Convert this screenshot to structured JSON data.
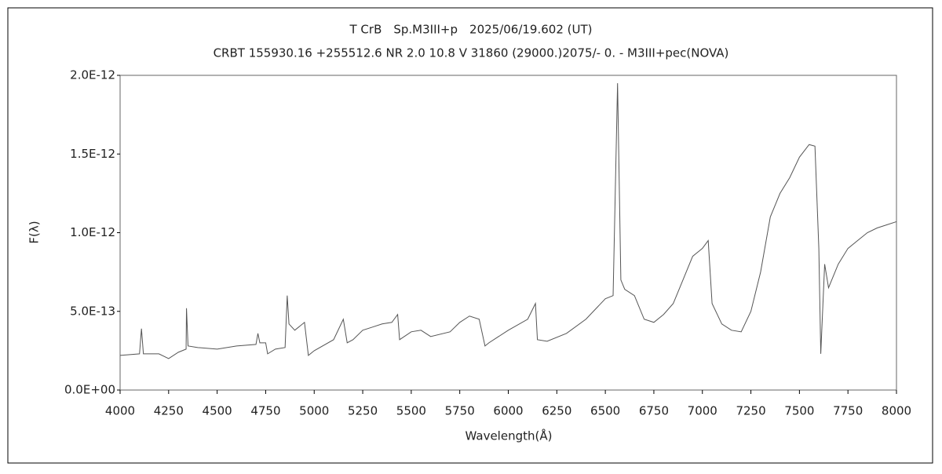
{
  "chart_data": {
    "type": "line",
    "title": "T CrB　Sp.M3III+p　2025/06/19.602 (UT)",
    "subtitle": "CRBT 155930.16 +255512.6 NR 2.0 10.8 V 31860 (29000.)2075/-  0. - M3III+pec(NOVA)",
    "xlabel": "Wavelength(Å)",
    "ylabel": "F(λ)",
    "color": "#555555",
    "x": [
      4000,
      4100,
      4110,
      4120,
      4200,
      4250,
      4300,
      4340,
      4342,
      4350,
      4400,
      4500,
      4600,
      4700,
      4710,
      4720,
      4750,
      4760,
      4800,
      4850,
      4861,
      4870,
      4900,
      4950,
      4970,
      5000,
      5100,
      5150,
      5170,
      5200,
      5250,
      5300,
      5350,
      5400,
      5430,
      5440,
      5500,
      5550,
      5600,
      5700,
      5750,
      5800,
      5850,
      5880,
      5900,
      6000,
      6100,
      6140,
      6150,
      6200,
      6300,
      6400,
      6500,
      6540,
      6563,
      6580,
      6600,
      6650,
      6700,
      6750,
      6800,
      6850,
      6900,
      6950,
      7000,
      7030,
      7050,
      7100,
      7150,
      7200,
      7250,
      7300,
      7350,
      7400,
      7450,
      7500,
      7550,
      7580,
      7600,
      7610,
      7630,
      7650,
      7700,
      7750,
      7800,
      7850,
      7900,
      7950,
      8000
    ],
    "values": [
      2.2e-13,
      2.3e-13,
      3.9e-13,
      2.3e-13,
      2.3e-13,
      2e-13,
      2.4e-13,
      2.6e-13,
      5.2e-13,
      2.8e-13,
      2.7e-13,
      2.6e-13,
      2.8e-13,
      2.9e-13,
      3.6e-13,
      3e-13,
      3e-13,
      2.3e-13,
      2.6e-13,
      2.7e-13,
      6e-13,
      4.2e-13,
      3.8e-13,
      4.3e-13,
      2.2e-13,
      2.5e-13,
      3.2e-13,
      4.5e-13,
      3e-13,
      3.2e-13,
      3.8e-13,
      4e-13,
      4.2e-13,
      4.3e-13,
      4.8e-13,
      3.2e-13,
      3.7e-13,
      3.8e-13,
      3.4e-13,
      3.7e-13,
      4.3e-13,
      4.7e-13,
      4.5e-13,
      2.8e-13,
      3e-13,
      3.8e-13,
      4.5e-13,
      5.5e-13,
      3.2e-13,
      3.1e-13,
      3.6e-13,
      4.5e-13,
      5.8e-13,
      6e-13,
      1.95e-12,
      7e-13,
      6.4e-13,
      6e-13,
      4.5e-13,
      4.3e-13,
      4.8e-13,
      5.5e-13,
      7e-13,
      8.5e-13,
      9e-13,
      9.5e-13,
      5.5e-13,
      4.2e-13,
      3.8e-13,
      3.7e-13,
      5e-13,
      7.5e-13,
      1.1e-12,
      1.25e-12,
      1.35e-12,
      1.48e-12,
      1.56e-12,
      1.55e-12,
      9e-13,
      2.3e-13,
      8e-13,
      6.5e-13,
      8e-13,
      9e-13,
      9.5e-13,
      1e-12,
      1.03e-12,
      1.05e-12,
      1.07e-12
    ],
    "xlim": [
      4000,
      8000
    ],
    "xticks": [
      4000,
      4250,
      4500,
      4750,
      5000,
      5250,
      5500,
      5750,
      6000,
      6250,
      6500,
      6750,
      7000,
      7250,
      7500,
      7750,
      8000
    ],
    "ylim": [
      0,
      2e-12
    ],
    "yticks": [
      {
        "value": 0,
        "label": "0.0E+00"
      },
      {
        "value": 5e-13,
        "label": "5.0E-13"
      },
      {
        "value": 1e-12,
        "label": "1.0E-12"
      },
      {
        "value": 1.5e-12,
        "label": "1.5E-12"
      },
      {
        "value": 2e-12,
        "label": "2.0E-12"
      }
    ]
  }
}
